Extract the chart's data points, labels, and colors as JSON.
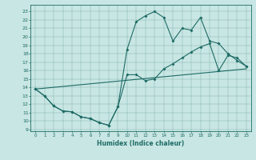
{
  "xlabel": "Humidex (Indice chaleur)",
  "bg_color": "#c8e6e3",
  "line_color": "#1e6b65",
  "xlim": [
    -0.5,
    23.5
  ],
  "ylim": [
    8.8,
    23.8
  ],
  "xticks": [
    0,
    1,
    2,
    3,
    4,
    5,
    6,
    7,
    8,
    9,
    10,
    11,
    12,
    13,
    14,
    15,
    16,
    17,
    18,
    19,
    20,
    21,
    22,
    23
  ],
  "yticks": [
    9,
    10,
    11,
    12,
    13,
    14,
    15,
    16,
    17,
    18,
    19,
    20,
    21,
    22,
    23
  ],
  "curve1_x": [
    0,
    1,
    2,
    3,
    4,
    5,
    6,
    7,
    8,
    9,
    10,
    11,
    12,
    13,
    14,
    15,
    16,
    17,
    18,
    19,
    20,
    21,
    22,
    23
  ],
  "curve1_y": [
    13.8,
    13.0,
    11.8,
    11.2,
    11.1,
    10.5,
    10.3,
    9.8,
    9.5,
    11.7,
    18.5,
    21.8,
    22.5,
    23.0,
    22.3,
    19.5,
    21.0,
    20.8,
    22.3,
    19.5,
    19.2,
    18.0,
    17.2,
    16.5
  ],
  "curve2_x": [
    0,
    1,
    2,
    3,
    4,
    5,
    6,
    7,
    8,
    9,
    10,
    11,
    12,
    13,
    14,
    15,
    16,
    17,
    18,
    19,
    20,
    21,
    22,
    23
  ],
  "curve2_y": [
    13.8,
    13.0,
    11.8,
    11.2,
    11.1,
    10.5,
    10.3,
    9.8,
    9.5,
    11.7,
    15.5,
    15.5,
    14.8,
    15.0,
    16.2,
    16.8,
    17.5,
    18.2,
    18.8,
    19.2,
    16.0,
    17.8,
    17.5,
    16.5
  ],
  "curve3_x": [
    0,
    23
  ],
  "curve3_y": [
    13.8,
    16.2
  ]
}
